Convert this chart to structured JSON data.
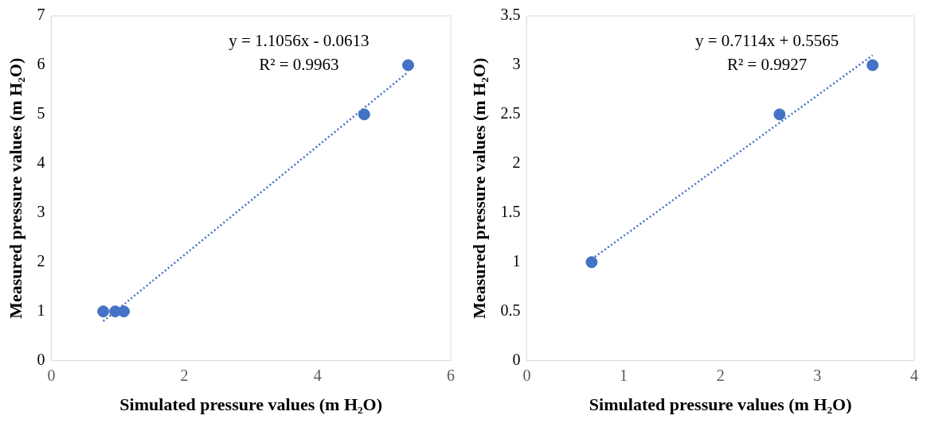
{
  "chart_data": [
    {
      "type": "scatter",
      "xlabel": "Simulated pressure values (m H₂O)",
      "ylabel": "Measured pressure values (m H₂O)",
      "xlim": [
        0,
        6
      ],
      "xticks": [
        0,
        2,
        4,
        6
      ],
      "ylim": [
        0,
        7
      ],
      "yticks": [
        0,
        1,
        2,
        3,
        4,
        5,
        6,
        7
      ],
      "grid": false,
      "legend": false,
      "marker": "circle",
      "annotations": [
        "y = 1.1056x - 0.0613",
        "R² = 0.9963"
      ],
      "series": [
        {
          "color": "#4472c4",
          "x": [
            0.78,
            0.96,
            1.09,
            4.7,
            5.36
          ],
          "values": [
            1,
            1,
            1,
            5,
            6
          ]
        },
        {
          "type": "line",
          "line_style": "dotted",
          "marker": "none",
          "color": "#4472c4",
          "x": [
            0.78,
            5.36
          ],
          "values": [
            0.8,
            5.86
          ]
        }
      ]
    },
    {
      "type": "scatter",
      "xlabel": "Simulated pressure values (m H₂O)",
      "ylabel": "Measured pressure values (m H₂O)",
      "xlim": [
        0,
        4
      ],
      "xticks": [
        0,
        1,
        2,
        3,
        4
      ],
      "ylim": [
        0,
        3.5
      ],
      "yticks": [
        0,
        0.5,
        1,
        1.5,
        2,
        2.5,
        3,
        3.5
      ],
      "grid": false,
      "legend": false,
      "marker": "circle",
      "annotations": [
        "y = 0.7114x + 0.5565",
        "R² = 0.9927"
      ],
      "series": [
        {
          "color": "#4472c4",
          "x": [
            0.67,
            2.61,
            3.57
          ],
          "values": [
            1,
            2.5,
            3
          ]
        },
        {
          "type": "line",
          "line_style": "dotted",
          "marker": "none",
          "color": "#4472c4",
          "x": [
            0.67,
            3.57
          ],
          "values": [
            1.03,
            3.1
          ]
        }
      ]
    }
  ]
}
